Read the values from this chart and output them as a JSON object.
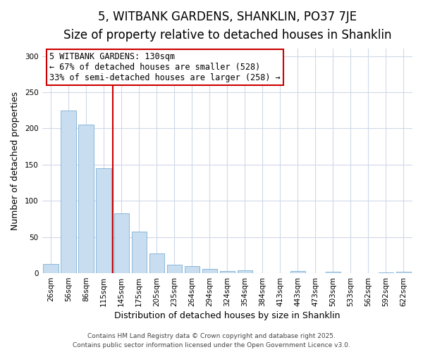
{
  "title": "5, WITBANK GARDENS, SHANKLIN, PO37 7JE",
  "subtitle": "Size of property relative to detached houses in Shanklin",
  "xlabel": "Distribution of detached houses by size in Shanklin",
  "ylabel": "Number of detached properties",
  "categories": [
    "26sqm",
    "56sqm",
    "86sqm",
    "115sqm",
    "145sqm",
    "175sqm",
    "205sqm",
    "235sqm",
    "264sqm",
    "294sqm",
    "324sqm",
    "354sqm",
    "384sqm",
    "413sqm",
    "443sqm",
    "473sqm",
    "503sqm",
    "533sqm",
    "562sqm",
    "592sqm",
    "622sqm"
  ],
  "values": [
    13,
    225,
    205,
    145,
    83,
    57,
    27,
    12,
    10,
    6,
    3,
    4,
    0,
    0,
    3,
    0,
    2,
    0,
    0,
    1,
    2
  ],
  "bar_color": "#c9ddf0",
  "bar_edge_color": "#7bafd4",
  "ylim": [
    0,
    310
  ],
  "yticks": [
    0,
    50,
    100,
    150,
    200,
    250,
    300
  ],
  "vline_color": "#cc0000",
  "annotation_title": "5 WITBANK GARDENS: 130sqm",
  "annotation_line1": "← 67% of detached houses are smaller (528)",
  "annotation_line2": "33% of semi-detached houses are larger (258) →",
  "annotation_box_color": "#ffffff",
  "annotation_box_edge_color": "#cc0000",
  "footer1": "Contains HM Land Registry data © Crown copyright and database right 2025.",
  "footer2": "Contains public sector information licensed under the Open Government Licence v3.0.",
  "background_color": "#ffffff",
  "plot_bg_color": "#ffffff",
  "grid_color": "#d0d8e8",
  "title_fontsize": 12,
  "subtitle_fontsize": 10,
  "axis_fontsize": 9,
  "tick_fontsize": 7.5,
  "annotation_fontsize": 8.5,
  "footer_fontsize": 6.5
}
